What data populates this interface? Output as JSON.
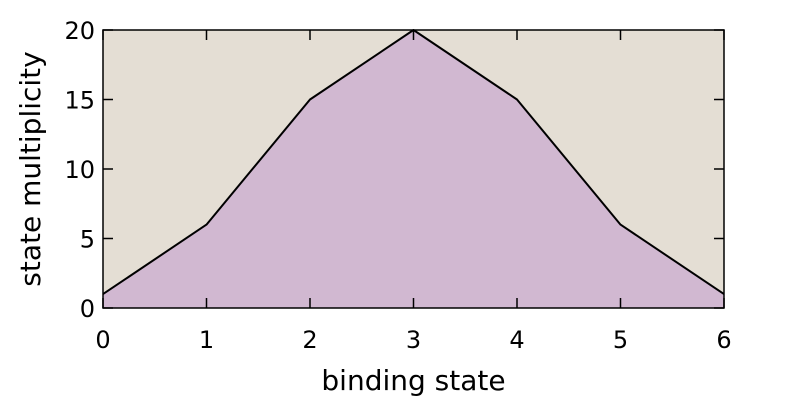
{
  "chart_data": {
    "type": "area",
    "x": [
      0,
      1,
      2,
      3,
      4,
      5,
      6
    ],
    "series": [
      {
        "values": [
          1,
          6,
          15,
          20,
          15,
          6,
          1
        ]
      }
    ],
    "title": "",
    "xlabel": "binding state",
    "ylabel": "state multiplicity",
    "xlim": [
      0,
      6
    ],
    "ylim": [
      0,
      20
    ],
    "xticks": [
      "0",
      "1",
      "2",
      "3",
      "4",
      "5",
      "6"
    ],
    "yticks": [
      "0",
      "5",
      "10",
      "15",
      "20"
    ],
    "grid": false,
    "legend": "none",
    "colors": {
      "plot_background": "#e4ded4",
      "area_fill": "#d1b8d1",
      "line": "#000000"
    }
  }
}
